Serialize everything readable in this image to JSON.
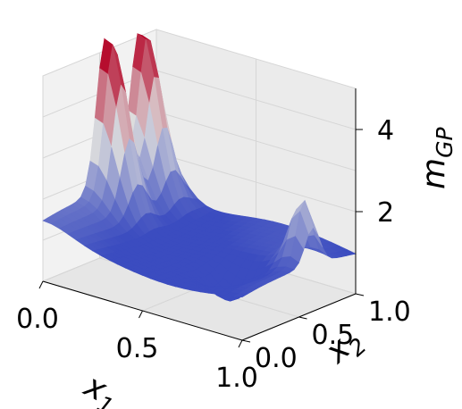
{
  "chart_data": {
    "type": "surface",
    "xlabel": {
      "base": "x",
      "sub": "1"
    },
    "ylabel": {
      "base": "x",
      "sub": "2"
    },
    "zlabel": {
      "base": "m",
      "sub": "GP"
    },
    "xlim": [
      0,
      1
    ],
    "ylim": [
      0,
      1
    ],
    "zlim": [
      0,
      5
    ],
    "xticks": [
      "0.0",
      "0.5",
      "1.0"
    ],
    "yticks": [
      "0.0",
      "0.5",
      "1.0"
    ],
    "zticks": [
      "2",
      "4"
    ],
    "grid": true,
    "colormap": "coolwarm",
    "grid_resolution": 24,
    "peaks": [
      {
        "x1": 0.02,
        "x2": 0.55,
        "height": 5.0
      },
      {
        "x1": 0.02,
        "x2": 0.85,
        "height": 4.8
      },
      {
        "x1": 0.95,
        "x2": 0.62,
        "height": 2.7
      }
    ]
  },
  "colors": {
    "pane": "#f2f2f2",
    "grid": "#d6d6d6",
    "axis": "#000000",
    "cool": "#3b4cc0",
    "mid": "#dddddd",
    "warm": "#b40426"
  }
}
